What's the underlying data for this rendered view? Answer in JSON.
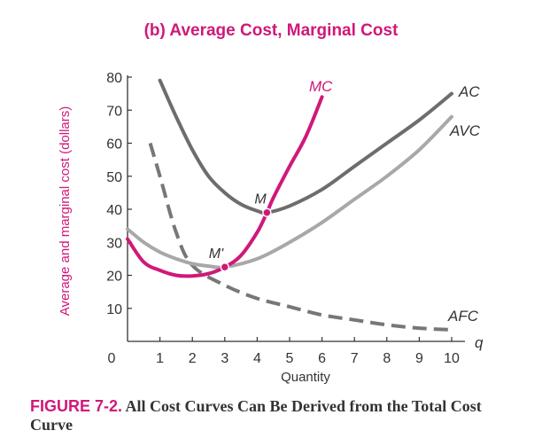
{
  "chart_data": {
    "type": "line",
    "title": "(b) Average Cost, Marginal Cost",
    "xlabel": "Quantity",
    "x_axis_symbol": "q",
    "ylabel": "Average and marginal cost (dollars)",
    "xlim": [
      0,
      10
    ],
    "ylim": [
      0,
      80
    ],
    "x_ticks": [
      0,
      1,
      2,
      3,
      4,
      5,
      6,
      7,
      8,
      9,
      10
    ],
    "y_ticks": [
      10,
      20,
      30,
      40,
      50,
      60,
      70,
      80
    ],
    "grid": false,
    "colors": {
      "accent": "#d0187a",
      "ac": "#6d6d6d",
      "avc": "#a8a8a8",
      "afc": "#777777",
      "axis": "#333333"
    },
    "series": [
      {
        "name": "AC",
        "style": "solid",
        "color": "#6d6d6d",
        "x": [
          1,
          1.5,
          2,
          2.5,
          3,
          3.5,
          4,
          4.3,
          5,
          6,
          7,
          8,
          9,
          10
        ],
        "y": [
          79,
          68,
          58,
          50,
          45,
          41.5,
          39.5,
          39,
          41,
          46,
          53,
          60,
          67,
          75
        ]
      },
      {
        "name": "AVC",
        "style": "solid",
        "color": "#a8a8a8",
        "x": [
          0,
          0.5,
          1,
          1.5,
          2,
          2.5,
          3,
          4,
          5,
          6,
          7,
          8,
          9,
          10
        ],
        "y": [
          34,
          30,
          27,
          25,
          23.5,
          22.8,
          22.5,
          25,
          30,
          36,
          43,
          50,
          58,
          68
        ]
      },
      {
        "name": "AFC",
        "style": "dashed",
        "color": "#777777",
        "x": [
          0.7,
          1,
          1.5,
          2,
          3,
          4,
          5,
          6,
          7,
          8,
          9,
          10
        ],
        "y": [
          60,
          50,
          33,
          23,
          17,
          13,
          10.5,
          8,
          6.5,
          5,
          4,
          3.5
        ]
      },
      {
        "name": "MC",
        "style": "solid",
        "color": "#d0187a",
        "x": [
          0,
          0.5,
          1,
          1.5,
          2,
          2.5,
          3,
          3.5,
          4,
          4.3,
          4.5,
          5,
          5.5,
          6
        ],
        "y": [
          31,
          24,
          21.5,
          20,
          19.8,
          20.5,
          22.5,
          26,
          33,
          39,
          43.5,
          53,
          62,
          74
        ]
      }
    ],
    "points": [
      {
        "label": "M",
        "x": 4.3,
        "y": 39
      },
      {
        "label": "M'",
        "x": 3,
        "y": 22.5
      }
    ]
  },
  "caption": {
    "label": "FIGURE 7-2.",
    "text": "All Cost Curves Can Be Derived from the Total Cost Curve"
  }
}
